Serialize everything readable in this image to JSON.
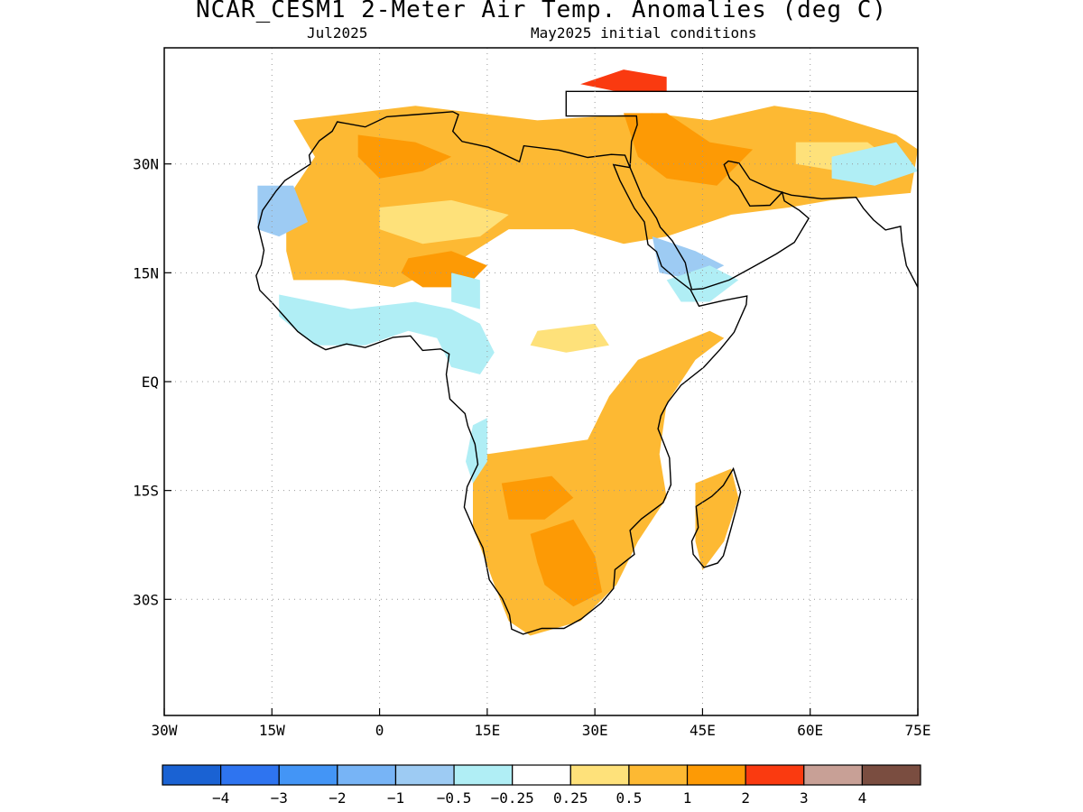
{
  "header": {
    "title": "NCAR_CESM1 2-Meter Air Temp. Anomalies (deg C)",
    "valid_month": "Jul2025",
    "init_label": "May2025 initial conditions"
  },
  "map": {
    "lon_range": [
      -30,
      75
    ],
    "lat_range": [
      -46,
      46
    ],
    "lon_ticks": [
      {
        "value": -30,
        "label": "30W"
      },
      {
        "value": -15,
        "label": "15W"
      },
      {
        "value": 0,
        "label": "0"
      },
      {
        "value": 15,
        "label": "15E"
      },
      {
        "value": 30,
        "label": "30E"
      },
      {
        "value": 45,
        "label": "45E"
      },
      {
        "value": 60,
        "label": "60E"
      },
      {
        "value": 75,
        "label": "75E"
      }
    ],
    "lat_ticks": [
      {
        "value": 30,
        "label": "30N"
      },
      {
        "value": 15,
        "label": "15N"
      },
      {
        "value": 0,
        "label": "EQ"
      },
      {
        "value": -15,
        "label": "15S"
      },
      {
        "value": -30,
        "label": "30S"
      }
    ],
    "gridlines": "dotted",
    "anomaly_regions": [
      {
        "category": "0.5 to 1",
        "color": "#fdb933",
        "lonlat": [
          [
            -12,
            36
          ],
          [
            5,
            38
          ],
          [
            22,
            36
          ],
          [
            38,
            37
          ],
          [
            46,
            36
          ],
          [
            55,
            38
          ],
          [
            62,
            37
          ],
          [
            72,
            34
          ],
          [
            75,
            32
          ],
          [
            74,
            26
          ],
          [
            63,
            25
          ],
          [
            57,
            24
          ],
          [
            49,
            23
          ],
          [
            40,
            20
          ],
          [
            34,
            19
          ],
          [
            27,
            21
          ],
          [
            18,
            21
          ],
          [
            10,
            16
          ],
          [
            2,
            13
          ],
          [
            -5,
            14
          ],
          [
            -12,
            14
          ],
          [
            -13,
            18
          ],
          [
            -13,
            25
          ],
          [
            -9,
            31
          ]
        ]
      },
      {
        "category": "0.5 to 1",
        "color": "#fdb933",
        "lonlat": [
          [
            15,
            -10
          ],
          [
            22,
            -9
          ],
          [
            29,
            -8
          ],
          [
            32,
            -2
          ],
          [
            36,
            3
          ],
          [
            41,
            5
          ],
          [
            46,
            7
          ],
          [
            48,
            6
          ],
          [
            44,
            3
          ],
          [
            40,
            -3
          ],
          [
            39,
            -10
          ],
          [
            40,
            -16
          ],
          [
            36,
            -22
          ],
          [
            33,
            -28
          ],
          [
            28,
            -33
          ],
          [
            21,
            -35
          ],
          [
            18,
            -33
          ],
          [
            16,
            -28
          ],
          [
            13,
            -20
          ],
          [
            13,
            -14
          ]
        ]
      },
      {
        "category": "0.5 to 1",
        "color": "#fdb933",
        "lonlat": [
          [
            44,
            -14
          ],
          [
            49,
            -12
          ],
          [
            50,
            -16
          ],
          [
            48,
            -22
          ],
          [
            45,
            -26
          ],
          [
            44,
            -22
          ],
          [
            44,
            -17
          ]
        ]
      },
      {
        "category": "1 to 2",
        "color": "#fd9a05",
        "lonlat": [
          [
            -3,
            34
          ],
          [
            5,
            33
          ],
          [
            10,
            31
          ],
          [
            6,
            29
          ],
          [
            0,
            28
          ],
          [
            -3,
            31
          ]
        ]
      },
      {
        "category": "1 to 2",
        "color": "#fd9a05",
        "lonlat": [
          [
            4,
            17
          ],
          [
            10,
            18
          ],
          [
            15,
            16
          ],
          [
            12,
            13
          ],
          [
            6,
            13
          ],
          [
            3,
            15
          ]
        ]
      },
      {
        "category": "1 to 2",
        "color": "#fd9a05",
        "lonlat": [
          [
            34,
            37
          ],
          [
            40,
            37
          ],
          [
            46,
            33
          ],
          [
            52,
            32
          ],
          [
            47,
            27
          ],
          [
            40,
            28
          ],
          [
            36,
            31
          ]
        ]
      },
      {
        "category": "1 to 2",
        "color": "#fd9a05",
        "lonlat": [
          [
            17,
            -14
          ],
          [
            24,
            -13
          ],
          [
            27,
            -16
          ],
          [
            23,
            -19
          ],
          [
            18,
            -19
          ]
        ]
      },
      {
        "category": "1 to 2",
        "color": "#fd9a05",
        "lonlat": [
          [
            21,
            -21
          ],
          [
            27,
            -19
          ],
          [
            30,
            -24
          ],
          [
            31,
            -29
          ],
          [
            27,
            -31
          ],
          [
            23,
            -28
          ],
          [
            22,
            -25
          ]
        ]
      },
      {
        "category": "2 to 3",
        "color": "#fa3a10",
        "lonlat": [
          [
            28,
            41
          ],
          [
            34,
            43
          ],
          [
            40,
            42
          ],
          [
            40,
            40
          ],
          [
            33,
            40
          ]
        ]
      },
      {
        "category": "0.25 to 0.5",
        "color": "#fee17a",
        "lonlat": [
          [
            0,
            24
          ],
          [
            10,
            25
          ],
          [
            18,
            23
          ],
          [
            14,
            20
          ],
          [
            6,
            19
          ],
          [
            0,
            21
          ]
        ]
      },
      {
        "category": "0.25 to 0.5",
        "color": "#fee17a",
        "lonlat": [
          [
            22,
            7
          ],
          [
            30,
            8
          ],
          [
            32,
            5
          ],
          [
            26,
            4
          ],
          [
            21,
            5
          ]
        ]
      },
      {
        "category": "0.25 to 0.5",
        "color": "#fee17a",
        "lonlat": [
          [
            58,
            33
          ],
          [
            68,
            33
          ],
          [
            72,
            30
          ],
          [
            64,
            29
          ],
          [
            58,
            30
          ]
        ]
      },
      {
        "category": "-1 to -0.5",
        "color": "#9dcbf3",
        "lonlat": [
          [
            -17,
            27
          ],
          [
            -12,
            27
          ],
          [
            -10,
            22
          ],
          [
            -14,
            20
          ],
          [
            -17,
            21
          ]
        ]
      },
      {
        "category": "-1 to -0.5",
        "color": "#9dcbf3",
        "lonlat": [
          [
            38,
            20
          ],
          [
            44,
            18
          ],
          [
            48,
            16
          ],
          [
            44,
            14
          ],
          [
            39,
            15
          ]
        ]
      },
      {
        "category": "-0.5 to -0.25",
        "color": "#b0eef5",
        "lonlat": [
          [
            -14,
            12
          ],
          [
            -4,
            10
          ],
          [
            5,
            11
          ],
          [
            10,
            10
          ],
          [
            14,
            8
          ],
          [
            16,
            4
          ],
          [
            14,
            1
          ],
          [
            10,
            2
          ],
          [
            8,
            6
          ],
          [
            4,
            7
          ],
          [
            -2,
            5
          ],
          [
            -9,
            5
          ],
          [
            -14,
            9
          ]
        ]
      },
      {
        "category": "-0.5 to -0.25",
        "color": "#b0eef5",
        "lonlat": [
          [
            13,
            -6
          ],
          [
            15,
            -5
          ],
          [
            15,
            -11
          ],
          [
            13,
            -14
          ],
          [
            12,
            -11
          ]
        ]
      },
      {
        "category": "-0.5 to -0.25",
        "color": "#b0eef5",
        "lonlat": [
          [
            40,
            14
          ],
          [
            46,
            16
          ],
          [
            50,
            14
          ],
          [
            46,
            11
          ],
          [
            42,
            11
          ]
        ]
      },
      {
        "category": "-0.5 to -0.25",
        "color": "#b0eef5",
        "lonlat": [
          [
            63,
            31
          ],
          [
            72,
            33
          ],
          [
            75,
            29
          ],
          [
            69,
            27
          ],
          [
            63,
            28
          ]
        ]
      },
      {
        "category": "-0.5 to -0.25",
        "color": "#b0eef5",
        "lonlat": [
          [
            10,
            15
          ],
          [
            14,
            14
          ],
          [
            14,
            10
          ],
          [
            10,
            11
          ]
        ]
      }
    ]
  },
  "colorbar": {
    "boxes": [
      {
        "color": "#1a62d3"
      },
      {
        "color": "#2e74f0"
      },
      {
        "color": "#4395f6"
      },
      {
        "color": "#77b4f6"
      },
      {
        "color": "#9dcbf3"
      },
      {
        "color": "#b0eef5"
      },
      {
        "color": "#ffffff"
      },
      {
        "color": "#fee17a"
      },
      {
        "color": "#fdb933"
      },
      {
        "color": "#fd9a05"
      },
      {
        "color": "#fa3a10"
      },
      {
        "color": "#c8a096"
      },
      {
        "color": "#7a4d40"
      }
    ],
    "labels": [
      "−4",
      "−3",
      "−2",
      "−1",
      "−0.5",
      "−0.25",
      "0.25",
      "0.5",
      "1",
      "2",
      "3",
      "4"
    ]
  },
  "land_outline_lonlat": [
    [
      -5.9,
      35.8
    ],
    [
      -2,
      35.1
    ],
    [
      1,
      36.5
    ],
    [
      5,
      36.8
    ],
    [
      10.2,
      37.2
    ],
    [
      11,
      36.8
    ],
    [
      10.2,
      34.5
    ],
    [
      11.5,
      33.1
    ],
    [
      15.2,
      32.3
    ],
    [
      19.5,
      30.3
    ],
    [
      20.1,
      32.5
    ],
    [
      25,
      31.9
    ],
    [
      29,
      30.9
    ],
    [
      32.3,
      31.3
    ],
    [
      34.2,
      31.2
    ],
    [
      34.9,
      29.5
    ],
    [
      32.6,
      29.9
    ],
    [
      33.5,
      27.7
    ],
    [
      35.5,
      23.9
    ],
    [
      36.9,
      22
    ],
    [
      37.4,
      18.9
    ],
    [
      38.6,
      17.9
    ],
    [
      39.3,
      15.9
    ],
    [
      41.2,
      14.3
    ],
    [
      43.3,
      12.7
    ],
    [
      44.5,
      10.4
    ],
    [
      48,
      11.2
    ],
    [
      51.2,
      11.8
    ],
    [
      51.1,
      10.6
    ],
    [
      49.4,
      6.8
    ],
    [
      47.5,
      4.5
    ],
    [
      45.2,
      2
    ],
    [
      42,
      -0.5
    ],
    [
      40.2,
      -2.8
    ],
    [
      39.2,
      -4.7
    ],
    [
      38.8,
      -6.5
    ],
    [
      39.4,
      -8
    ],
    [
      40.4,
      -10.5
    ],
    [
      40.6,
      -14.2
    ],
    [
      39.5,
      -16.7
    ],
    [
      36.5,
      -18.9
    ],
    [
      34.9,
      -20.5
    ],
    [
      35.5,
      -23.8
    ],
    [
      32.8,
      -25.9
    ],
    [
      32.6,
      -28.5
    ],
    [
      30.9,
      -30.5
    ],
    [
      28.1,
      -32.7
    ],
    [
      25.7,
      -34
    ],
    [
      22.6,
      -34
    ],
    [
      20,
      -34.8
    ],
    [
      18.4,
      -34.1
    ],
    [
      18.1,
      -32.1
    ],
    [
      17.1,
      -29.9
    ],
    [
      15.3,
      -27.3
    ],
    [
      14.4,
      -22.9
    ],
    [
      13.4,
      -20.9
    ],
    [
      11.8,
      -17.3
    ],
    [
      12.2,
      -14.5
    ],
    [
      13.7,
      -11.4
    ],
    [
      13.3,
      -8.6
    ],
    [
      12.3,
      -6.1
    ],
    [
      11.9,
      -4.4
    ],
    [
      9.8,
      -2.4
    ],
    [
      9.3,
      1
    ],
    [
      9.7,
      3.8
    ],
    [
      8.5,
      4.5
    ],
    [
      6,
      4.3
    ],
    [
      4.3,
      6.3
    ],
    [
      1.9,
      6.1
    ],
    [
      -2,
      4.7
    ],
    [
      -4.6,
      5.2
    ],
    [
      -7.5,
      4.4
    ],
    [
      -9.2,
      5.3
    ],
    [
      -11.4,
      6.9
    ],
    [
      -13.2,
      8.9
    ],
    [
      -15,
      10.9
    ],
    [
      -16.7,
      12.6
    ],
    [
      -17.2,
      14.6
    ],
    [
      -16.5,
      16.1
    ],
    [
      -16.1,
      18.1
    ],
    [
      -16.9,
      21.3
    ],
    [
      -16.3,
      23.6
    ],
    [
      -14.4,
      26.3
    ],
    [
      -13.2,
      27.7
    ],
    [
      -9.6,
      30
    ],
    [
      -9.8,
      31.2
    ],
    [
      -8.4,
      33.2
    ],
    [
      -6.6,
      34.5
    ],
    [
      -5.9,
      35.8
    ]
  ],
  "madagascar_outline_lonlat": [
    [
      49.3,
      -12
    ],
    [
      50.3,
      -15.2
    ],
    [
      49.8,
      -17.2
    ],
    [
      48.9,
      -20.5
    ],
    [
      47.9,
      -24
    ],
    [
      47.1,
      -25
    ],
    [
      45.2,
      -25.6
    ],
    [
      43.7,
      -23.8
    ],
    [
      43.5,
      -22
    ],
    [
      44.4,
      -20.1
    ],
    [
      44.1,
      -17.2
    ],
    [
      46.3,
      -15.8
    ],
    [
      47.9,
      -14.3
    ],
    [
      49.3,
      -12
    ]
  ],
  "arabia_outline_lonlat": [
    [
      34.9,
      29.5
    ],
    [
      36.6,
      25.5
    ],
    [
      38.6,
      22.5
    ],
    [
      39.1,
      21.3
    ],
    [
      40.8,
      19.4
    ],
    [
      42.6,
      16.4
    ],
    [
      43.1,
      14.1
    ],
    [
      43.5,
      12.7
    ],
    [
      45,
      12.8
    ],
    [
      48.7,
      14
    ],
    [
      52.2,
      15.9
    ],
    [
      55.3,
      17.6
    ],
    [
      57.8,
      19.2
    ],
    [
      59.8,
      22.5
    ],
    [
      58.5,
      23.6
    ],
    [
      56.4,
      24.9
    ],
    [
      56.1,
      26.1
    ],
    [
      54.4,
      24.3
    ],
    [
      51.6,
      24.2
    ],
    [
      50.8,
      25.5
    ],
    [
      50,
      26.9
    ],
    [
      48.8,
      28
    ],
    [
      48,
      29.9
    ],
    [
      48.6,
      30.4
    ],
    [
      50.1,
      30.1
    ],
    [
      51.6,
      27.9
    ],
    [
      54.7,
      26.5
    ],
    [
      57.4,
      25.7
    ],
    [
      61.6,
      25.2
    ],
    [
      66.4,
      25.4
    ],
    [
      67.4,
      23.9
    ],
    [
      68.8,
      22.3
    ],
    [
      70.5,
      20.9
    ],
    [
      72.6,
      21.4
    ],
    [
      72.8,
      19.2
    ],
    [
      73.4,
      16
    ],
    [
      75,
      13
    ],
    [
      75,
      40
    ],
    [
      26,
      40
    ],
    [
      26,
      36.6
    ],
    [
      35.8,
      36.6
    ],
    [
      35.9,
      35.4
    ],
    [
      35.1,
      33.1
    ],
    [
      34.9,
      29.5
    ]
  ]
}
